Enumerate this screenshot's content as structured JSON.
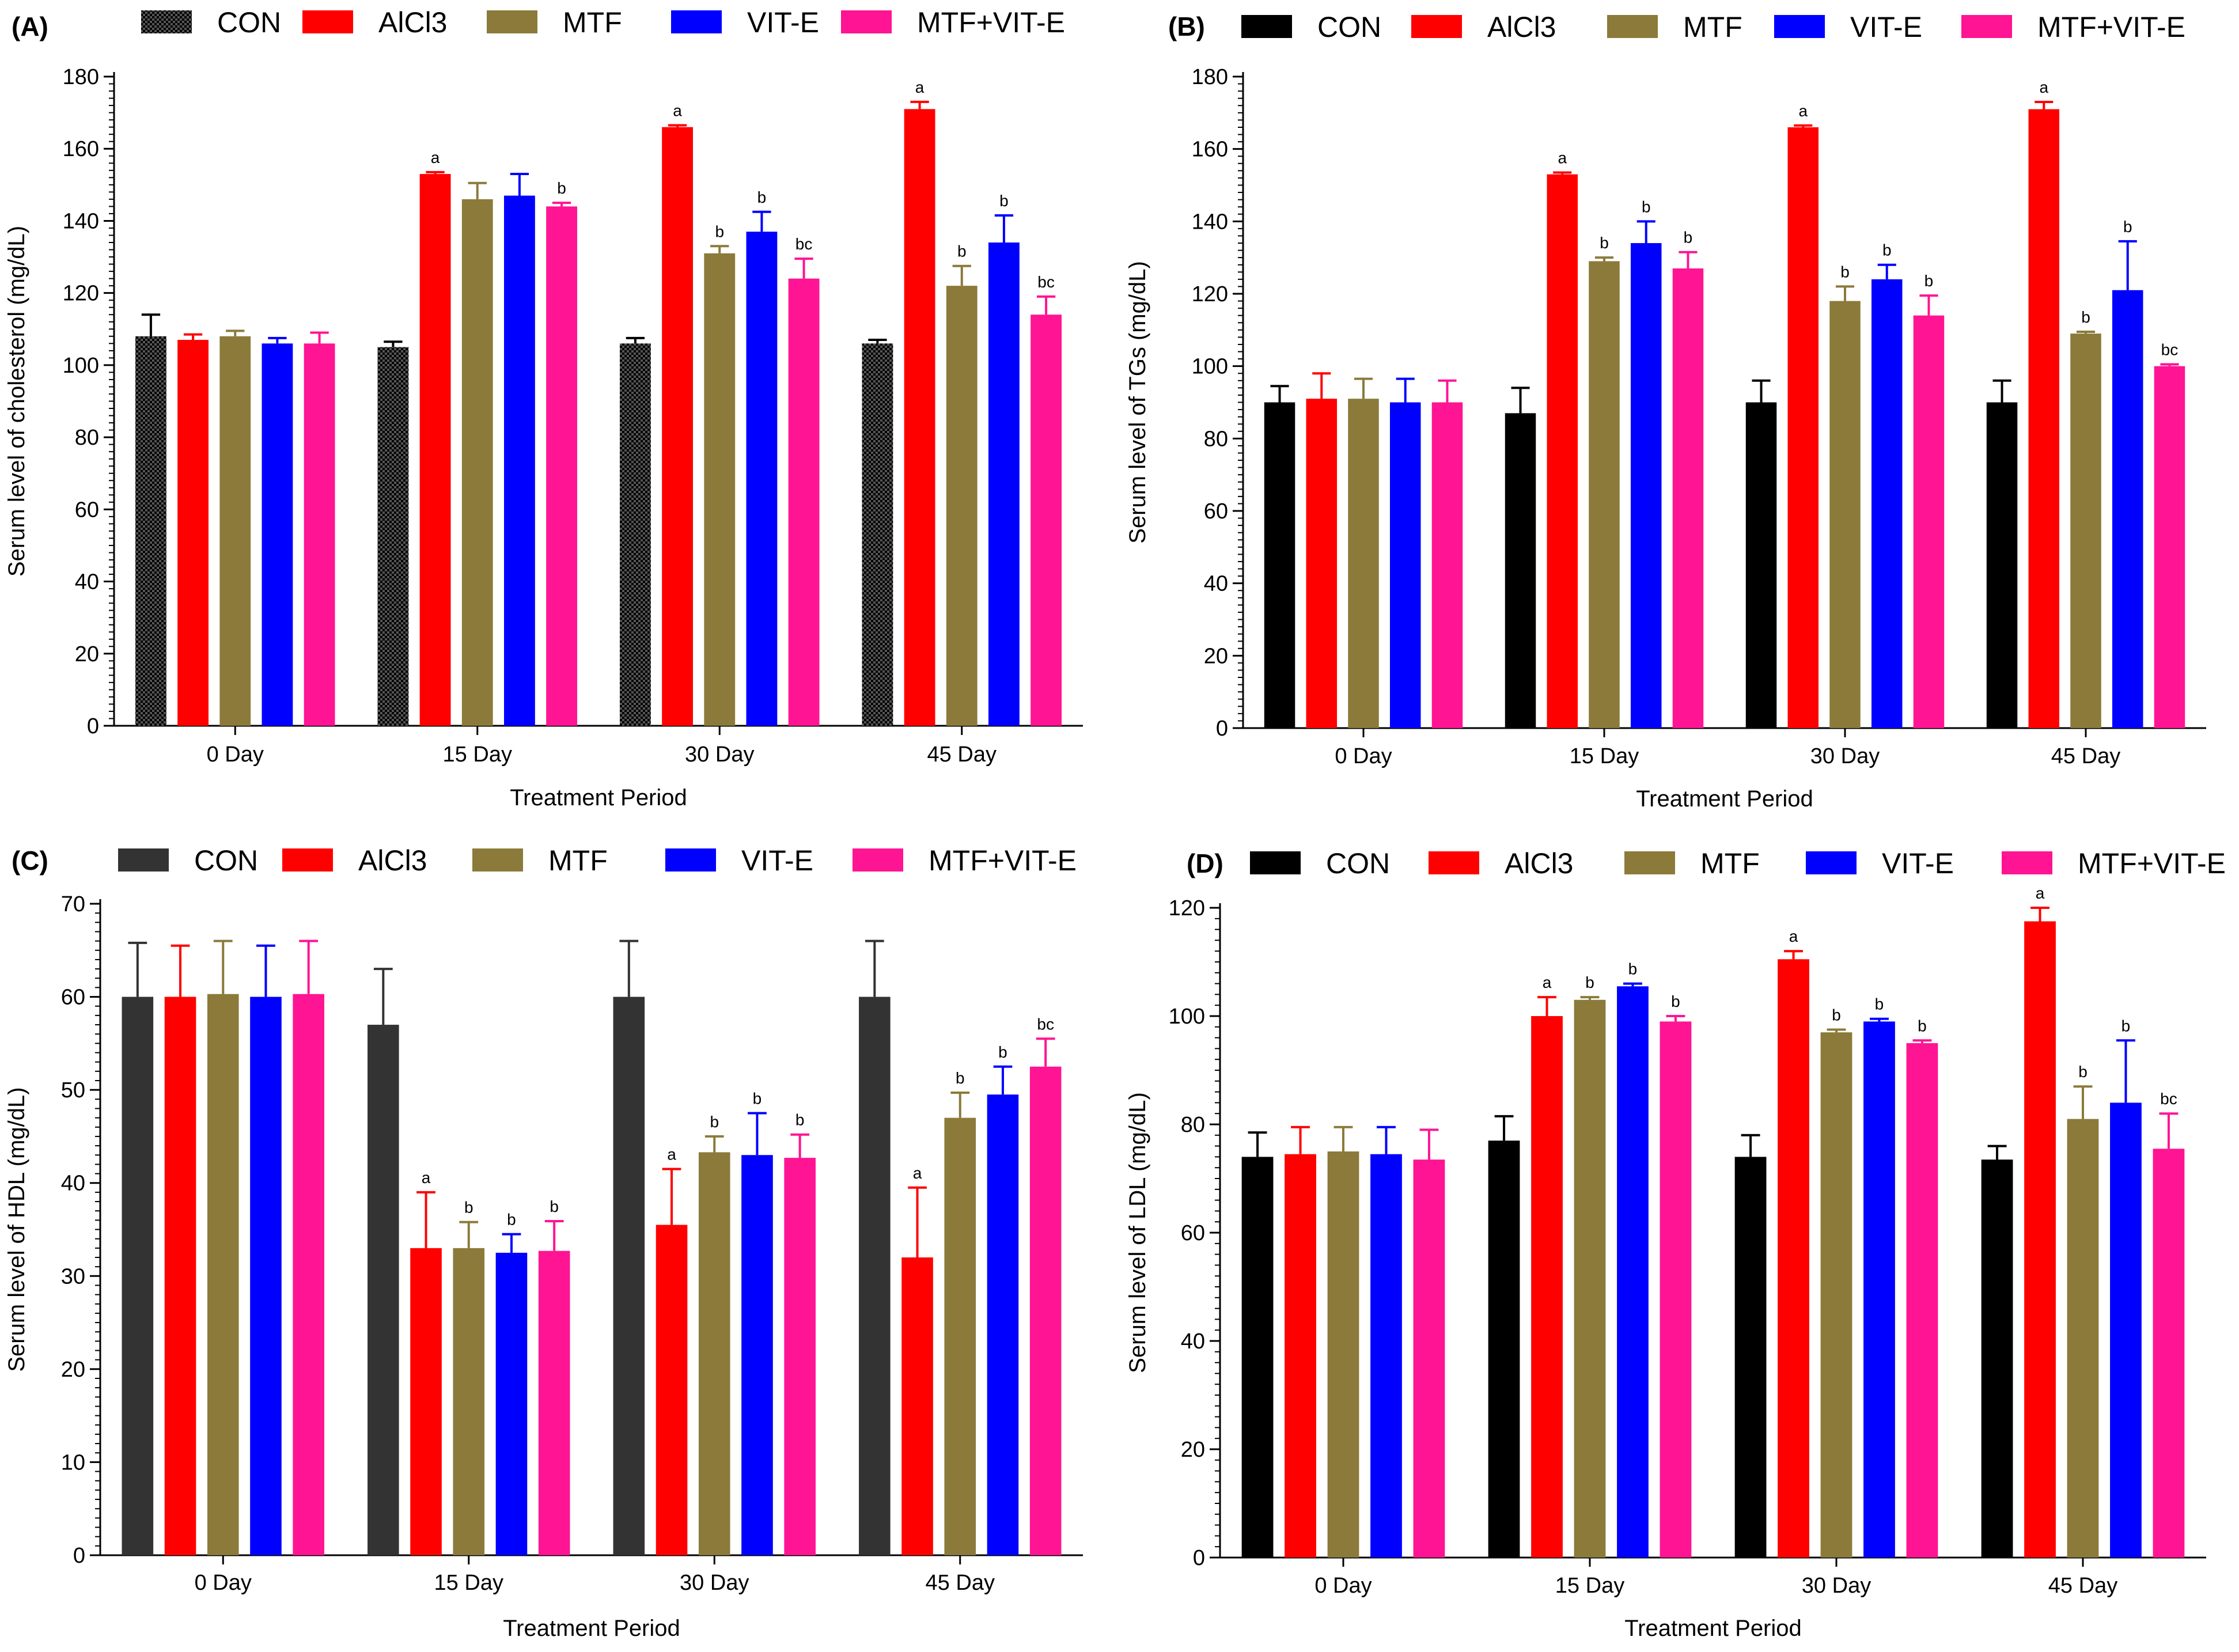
{
  "figure": {
    "x_title": "Treatment Period",
    "series_names": [
      "CON",
      "AlCl3",
      "MTF",
      "VIT-E",
      "MTF+VIT-E"
    ],
    "series_colors": [
      "#000000",
      "#ff0000",
      "#8b7a3a",
      "#0000ff",
      "#ff1493"
    ]
  },
  "chart_data": [
    {
      "type": "bar",
      "panel": "(A)",
      "title": "",
      "xlabel": "Treatment Period",
      "ylabel": "Serum level of cholesterol (mg/dL)",
      "ylim": [
        0,
        180
      ],
      "yticks": [
        0,
        20,
        40,
        60,
        80,
        100,
        120,
        140,
        160,
        180
      ],
      "categories": [
        "0 Day",
        "15 Day",
        "30 Day",
        "45 Day"
      ],
      "con_pattern": "checker",
      "series": [
        {
          "name": "CON",
          "color": "#000000",
          "values": [
            108,
            105,
            106,
            106
          ],
          "errors": [
            6,
            1.5,
            1.5,
            1
          ],
          "labels": [
            "",
            "",
            "",
            ""
          ]
        },
        {
          "name": "AlCl3",
          "color": "#ff0000",
          "values": [
            107,
            153,
            166,
            171
          ],
          "errors": [
            1.5,
            0.5,
            0.5,
            2
          ],
          "labels": [
            "",
            "a",
            "a",
            "a"
          ]
        },
        {
          "name": "MTF",
          "color": "#8b7a3a",
          "values": [
            108,
            146,
            131,
            122
          ],
          "errors": [
            1.5,
            4.5,
            2,
            5.5
          ],
          "labels": [
            "",
            "",
            "b",
            "b"
          ]
        },
        {
          "name": "VIT-E",
          "color": "#0000ff",
          "values": [
            106,
            147,
            137,
            134
          ],
          "errors": [
            1.5,
            6,
            5.5,
            7.5
          ],
          "labels": [
            "",
            "",
            "b",
            "b"
          ]
        },
        {
          "name": "MTF+VIT-E",
          "color": "#ff1493",
          "values": [
            106,
            144,
            124,
            114
          ],
          "errors": [
            3,
            1,
            5.5,
            5
          ],
          "labels": [
            "",
            "b",
            "bc",
            "bc"
          ]
        }
      ]
    },
    {
      "type": "bar",
      "panel": "(B)",
      "title": "",
      "xlabel": "Treatment Period",
      "ylabel": "Serum level of TGs (mg/dL)",
      "ylim": [
        0,
        180
      ],
      "yticks": [
        0,
        20,
        40,
        60,
        80,
        100,
        120,
        140,
        160,
        180
      ],
      "categories": [
        "0 Day",
        "15 Day",
        "30 Day",
        "45 Day"
      ],
      "con_pattern": "solid",
      "series": [
        {
          "name": "CON",
          "color": "#000000",
          "values": [
            90,
            87,
            90,
            90
          ],
          "errors": [
            4.5,
            7,
            6,
            6
          ],
          "labels": [
            "",
            "",
            "",
            ""
          ]
        },
        {
          "name": "AlCl3",
          "color": "#ff0000",
          "values": [
            91,
            153,
            166,
            171
          ],
          "errors": [
            7,
            0.5,
            0.5,
            2
          ],
          "labels": [
            "",
            "a",
            "a",
            "a"
          ]
        },
        {
          "name": "MTF",
          "color": "#8b7a3a",
          "values": [
            91,
            129,
            118,
            109
          ],
          "errors": [
            5.5,
            1,
            4,
            0.5
          ],
          "labels": [
            "",
            "b",
            "b",
            "b"
          ]
        },
        {
          "name": "VIT-E",
          "color": "#0000ff",
          "values": [
            90,
            134,
            124,
            121
          ],
          "errors": [
            6.5,
            6,
            4,
            13.5
          ],
          "labels": [
            "",
            "b",
            "b",
            "b"
          ]
        },
        {
          "name": "MTF+VIT-E",
          "color": "#ff1493",
          "values": [
            90,
            127,
            114,
            100
          ],
          "errors": [
            6,
            4.5,
            5.5,
            0.5
          ],
          "labels": [
            "",
            "b",
            "b",
            "bc"
          ]
        }
      ]
    },
    {
      "type": "bar",
      "panel": "(C)",
      "title": "",
      "xlabel": "Treatment Period",
      "ylabel": "Serum level of HDL (mg/dL)",
      "ylim": [
        0,
        70
      ],
      "yticks": [
        0,
        10,
        20,
        30,
        40,
        50,
        60,
        70
      ],
      "categories": [
        "0 Day",
        "15 Day",
        "30 Day",
        "45 Day"
      ],
      "con_pattern": "solid",
      "series": [
        {
          "name": "CON",
          "color": "#333333",
          "values": [
            60,
            57,
            60,
            60
          ],
          "errors": [
            5.8,
            6,
            6,
            6
          ],
          "labels": [
            "",
            "",
            "",
            ""
          ]
        },
        {
          "name": "AlCl3",
          "color": "#ff0000",
          "values": [
            60,
            33,
            35.5,
            32
          ],
          "errors": [
            5.5,
            6,
            6,
            7.5
          ],
          "labels": [
            "",
            "a",
            "a",
            "a"
          ]
        },
        {
          "name": "MTF",
          "color": "#8b7a3a",
          "values": [
            60.3,
            33,
            43.3,
            47
          ],
          "errors": [
            5.7,
            2.8,
            1.7,
            2.7
          ],
          "labels": [
            "",
            "b",
            "b",
            "b"
          ]
        },
        {
          "name": "VIT-E",
          "color": "#0000ff",
          "values": [
            60,
            32.5,
            43,
            49.5
          ],
          "errors": [
            5.5,
            2,
            4.5,
            3
          ],
          "labels": [
            "",
            "b",
            "b",
            "b"
          ]
        },
        {
          "name": "MTF+VIT-E",
          "color": "#ff1493",
          "values": [
            60.3,
            32.7,
            42.7,
            52.5
          ],
          "errors": [
            5.7,
            3.2,
            2.5,
            3
          ],
          "labels": [
            "",
            "b",
            "b",
            "bc"
          ]
        }
      ]
    },
    {
      "type": "bar",
      "panel": "(D)",
      "title": "",
      "xlabel": "Treatment Period",
      "ylabel": "Serum level of LDL (mg/dL)",
      "ylim": [
        0,
        120
      ],
      "yticks": [
        0,
        20,
        40,
        60,
        80,
        100,
        120
      ],
      "categories": [
        "0 Day",
        "15 Day",
        "30 Day",
        "45 Day"
      ],
      "con_pattern": "solid",
      "series": [
        {
          "name": "CON",
          "color": "#000000",
          "values": [
            74,
            77,
            74,
            73.5
          ],
          "errors": [
            4.5,
            4.5,
            4,
            2.5
          ],
          "labels": [
            "",
            "",
            "",
            ""
          ]
        },
        {
          "name": "AlCl3",
          "color": "#ff0000",
          "values": [
            74.5,
            100,
            110.5,
            117.5
          ],
          "errors": [
            5,
            3.5,
            1.5,
            2.5
          ],
          "labels": [
            "",
            "a",
            "a",
            "a"
          ]
        },
        {
          "name": "MTF",
          "color": "#8b7a3a",
          "values": [
            75,
            103,
            97,
            81
          ],
          "errors": [
            4.5,
            0.5,
            0.5,
            6
          ],
          "labels": [
            "",
            "b",
            "b",
            "b"
          ]
        },
        {
          "name": "VIT-E",
          "color": "#0000ff",
          "values": [
            74.5,
            105.5,
            99,
            84
          ],
          "errors": [
            5,
            0.5,
            0.5,
            11.5
          ],
          "labels": [
            "",
            "b",
            "b",
            "b"
          ]
        },
        {
          "name": "MTF+VIT-E",
          "color": "#ff1493",
          "values": [
            73.5,
            99,
            95,
            75.5
          ],
          "errors": [
            5.5,
            1,
            0.5,
            6.5
          ],
          "labels": [
            "",
            "b",
            "b",
            "bc"
          ]
        }
      ]
    }
  ]
}
